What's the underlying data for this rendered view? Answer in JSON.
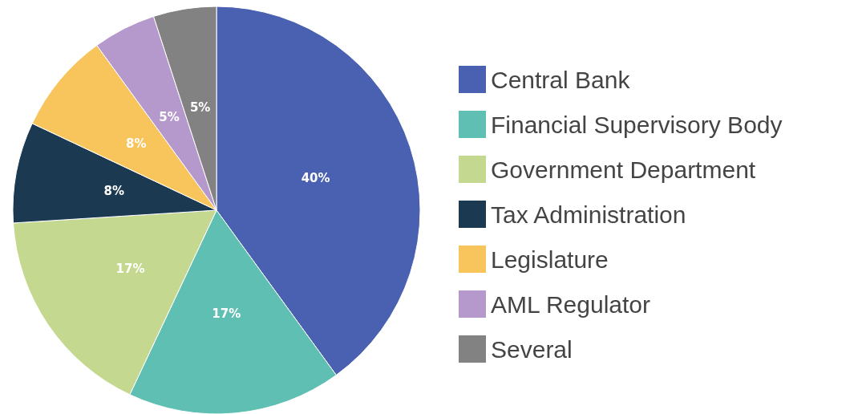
{
  "chart_data": {
    "type": "pie",
    "categories": [
      "Central Bank",
      "Financial Supervisory Body",
      "Government Department",
      "Tax Administration",
      "Legislature",
      "AML Regulator",
      "Several"
    ],
    "values": [
      40,
      17,
      17,
      8,
      8,
      5,
      5
    ],
    "value_labels": [
      "40%",
      "17%",
      "17%",
      "8%",
      "8%",
      "5%",
      "5%"
    ],
    "colors": [
      "#4a60b0",
      "#5ebfb2",
      "#c4d98f",
      "#1b3a52",
      "#f8c45c",
      "#b599cc",
      "#828282"
    ],
    "legend": "right"
  }
}
